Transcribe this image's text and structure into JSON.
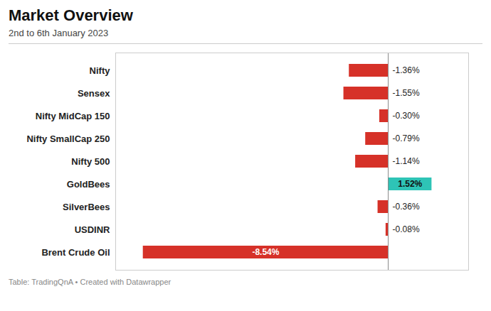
{
  "chart_data": {
    "type": "bar",
    "orientation": "horizontal",
    "title": "Market Overview",
    "subtitle": "2nd to 6th January 2023",
    "footer": "Table: TradingQnA • Created with Datawrapper",
    "categories": [
      "Nifty",
      "Sensex",
      "Nifty MidCap 150",
      "Nifty SmallCap 250",
      "Nifty 500",
      "GoldBees",
      "SilverBees",
      "USDINR",
      "Brent Crude Oil"
    ],
    "values": [
      -1.36,
      -1.55,
      -0.3,
      -0.79,
      -1.14,
      1.52,
      -0.36,
      -0.08,
      -8.54
    ],
    "value_labels": [
      "-1.36%",
      "-1.55%",
      "-0.30%",
      "-0.79%",
      "-1.14%",
      "1.52%",
      "-0.36%",
      "-0.08%",
      "-8.54%"
    ],
    "data_labels": true,
    "colors": [
      "#d63128",
      "#d63128",
      "#d63128",
      "#d63128",
      "#d63128",
      "#2ec4b6",
      "#d63128",
      "#d63128",
      "#d63128"
    ],
    "xlim": [
      -9.5,
      2.8
    ],
    "xticks": [],
    "tick_labels": "y",
    "grid": false
  }
}
